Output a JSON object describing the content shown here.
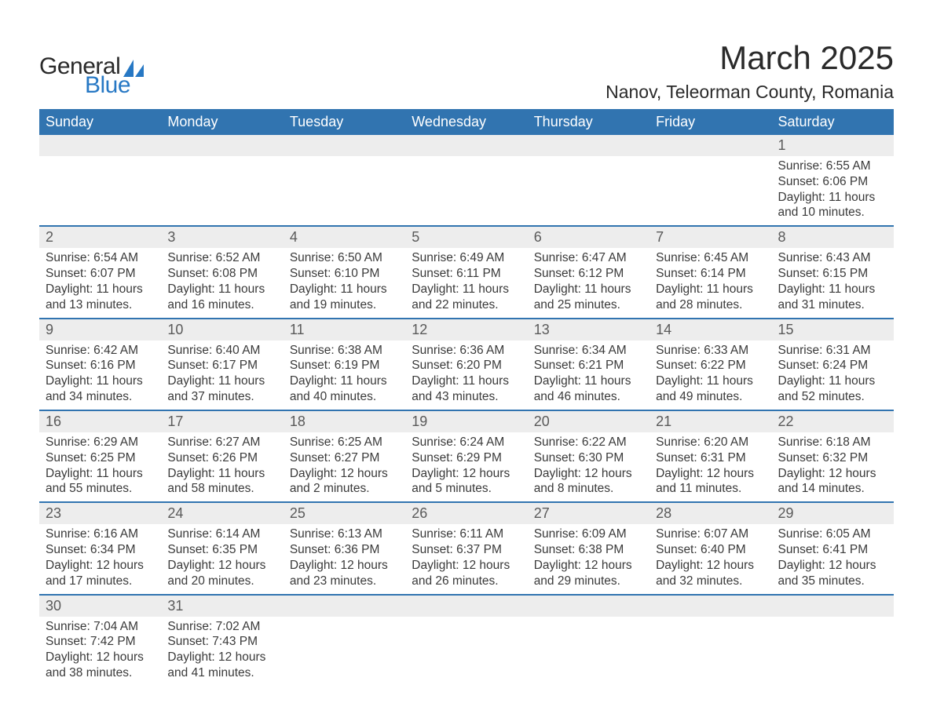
{
  "logo": {
    "general": "General",
    "blue": "Blue",
    "sail_color": "#2778c4"
  },
  "title": "March 2025",
  "location": "Nanov, Teleorman County, Romania",
  "colors": {
    "header_bg": "#3174b0",
    "header_text": "#ffffff",
    "daynum_bg": "#ededed",
    "daynum_text": "#5a5a5a",
    "body_text": "#3a3a3a",
    "row_border": "#3174b0"
  },
  "day_headers": [
    "Sunday",
    "Monday",
    "Tuesday",
    "Wednesday",
    "Thursday",
    "Friday",
    "Saturday"
  ],
  "weeks": [
    [
      null,
      null,
      null,
      null,
      null,
      null,
      {
        "n": "1",
        "sr": "Sunrise: 6:55 AM",
        "ss": "Sunset: 6:06 PM",
        "d1": "Daylight: 11 hours",
        "d2": "and 10 minutes."
      }
    ],
    [
      {
        "n": "2",
        "sr": "Sunrise: 6:54 AM",
        "ss": "Sunset: 6:07 PM",
        "d1": "Daylight: 11 hours",
        "d2": "and 13 minutes."
      },
      {
        "n": "3",
        "sr": "Sunrise: 6:52 AM",
        "ss": "Sunset: 6:08 PM",
        "d1": "Daylight: 11 hours",
        "d2": "and 16 minutes."
      },
      {
        "n": "4",
        "sr": "Sunrise: 6:50 AM",
        "ss": "Sunset: 6:10 PM",
        "d1": "Daylight: 11 hours",
        "d2": "and 19 minutes."
      },
      {
        "n": "5",
        "sr": "Sunrise: 6:49 AM",
        "ss": "Sunset: 6:11 PM",
        "d1": "Daylight: 11 hours",
        "d2": "and 22 minutes."
      },
      {
        "n": "6",
        "sr": "Sunrise: 6:47 AM",
        "ss": "Sunset: 6:12 PM",
        "d1": "Daylight: 11 hours",
        "d2": "and 25 minutes."
      },
      {
        "n": "7",
        "sr": "Sunrise: 6:45 AM",
        "ss": "Sunset: 6:14 PM",
        "d1": "Daylight: 11 hours",
        "d2": "and 28 minutes."
      },
      {
        "n": "8",
        "sr": "Sunrise: 6:43 AM",
        "ss": "Sunset: 6:15 PM",
        "d1": "Daylight: 11 hours",
        "d2": "and 31 minutes."
      }
    ],
    [
      {
        "n": "9",
        "sr": "Sunrise: 6:42 AM",
        "ss": "Sunset: 6:16 PM",
        "d1": "Daylight: 11 hours",
        "d2": "and 34 minutes."
      },
      {
        "n": "10",
        "sr": "Sunrise: 6:40 AM",
        "ss": "Sunset: 6:17 PM",
        "d1": "Daylight: 11 hours",
        "d2": "and 37 minutes."
      },
      {
        "n": "11",
        "sr": "Sunrise: 6:38 AM",
        "ss": "Sunset: 6:19 PM",
        "d1": "Daylight: 11 hours",
        "d2": "and 40 minutes."
      },
      {
        "n": "12",
        "sr": "Sunrise: 6:36 AM",
        "ss": "Sunset: 6:20 PM",
        "d1": "Daylight: 11 hours",
        "d2": "and 43 minutes."
      },
      {
        "n": "13",
        "sr": "Sunrise: 6:34 AM",
        "ss": "Sunset: 6:21 PM",
        "d1": "Daylight: 11 hours",
        "d2": "and 46 minutes."
      },
      {
        "n": "14",
        "sr": "Sunrise: 6:33 AM",
        "ss": "Sunset: 6:22 PM",
        "d1": "Daylight: 11 hours",
        "d2": "and 49 minutes."
      },
      {
        "n": "15",
        "sr": "Sunrise: 6:31 AM",
        "ss": "Sunset: 6:24 PM",
        "d1": "Daylight: 11 hours",
        "d2": "and 52 minutes."
      }
    ],
    [
      {
        "n": "16",
        "sr": "Sunrise: 6:29 AM",
        "ss": "Sunset: 6:25 PM",
        "d1": "Daylight: 11 hours",
        "d2": "and 55 minutes."
      },
      {
        "n": "17",
        "sr": "Sunrise: 6:27 AM",
        "ss": "Sunset: 6:26 PM",
        "d1": "Daylight: 11 hours",
        "d2": "and 58 minutes."
      },
      {
        "n": "18",
        "sr": "Sunrise: 6:25 AM",
        "ss": "Sunset: 6:27 PM",
        "d1": "Daylight: 12 hours",
        "d2": "and 2 minutes."
      },
      {
        "n": "19",
        "sr": "Sunrise: 6:24 AM",
        "ss": "Sunset: 6:29 PM",
        "d1": "Daylight: 12 hours",
        "d2": "and 5 minutes."
      },
      {
        "n": "20",
        "sr": "Sunrise: 6:22 AM",
        "ss": "Sunset: 6:30 PM",
        "d1": "Daylight: 12 hours",
        "d2": "and 8 minutes."
      },
      {
        "n": "21",
        "sr": "Sunrise: 6:20 AM",
        "ss": "Sunset: 6:31 PM",
        "d1": "Daylight: 12 hours",
        "d2": "and 11 minutes."
      },
      {
        "n": "22",
        "sr": "Sunrise: 6:18 AM",
        "ss": "Sunset: 6:32 PM",
        "d1": "Daylight: 12 hours",
        "d2": "and 14 minutes."
      }
    ],
    [
      {
        "n": "23",
        "sr": "Sunrise: 6:16 AM",
        "ss": "Sunset: 6:34 PM",
        "d1": "Daylight: 12 hours",
        "d2": "and 17 minutes."
      },
      {
        "n": "24",
        "sr": "Sunrise: 6:14 AM",
        "ss": "Sunset: 6:35 PM",
        "d1": "Daylight: 12 hours",
        "d2": "and 20 minutes."
      },
      {
        "n": "25",
        "sr": "Sunrise: 6:13 AM",
        "ss": "Sunset: 6:36 PM",
        "d1": "Daylight: 12 hours",
        "d2": "and 23 minutes."
      },
      {
        "n": "26",
        "sr": "Sunrise: 6:11 AM",
        "ss": "Sunset: 6:37 PM",
        "d1": "Daylight: 12 hours",
        "d2": "and 26 minutes."
      },
      {
        "n": "27",
        "sr": "Sunrise: 6:09 AM",
        "ss": "Sunset: 6:38 PM",
        "d1": "Daylight: 12 hours",
        "d2": "and 29 minutes."
      },
      {
        "n": "28",
        "sr": "Sunrise: 6:07 AM",
        "ss": "Sunset: 6:40 PM",
        "d1": "Daylight: 12 hours",
        "d2": "and 32 minutes."
      },
      {
        "n": "29",
        "sr": "Sunrise: 6:05 AM",
        "ss": "Sunset: 6:41 PM",
        "d1": "Daylight: 12 hours",
        "d2": "and 35 minutes."
      }
    ],
    [
      {
        "n": "30",
        "sr": "Sunrise: 7:04 AM",
        "ss": "Sunset: 7:42 PM",
        "d1": "Daylight: 12 hours",
        "d2": "and 38 minutes."
      },
      {
        "n": "31",
        "sr": "Sunrise: 7:02 AM",
        "ss": "Sunset: 7:43 PM",
        "d1": "Daylight: 12 hours",
        "d2": "and 41 minutes."
      },
      null,
      null,
      null,
      null,
      null
    ]
  ]
}
